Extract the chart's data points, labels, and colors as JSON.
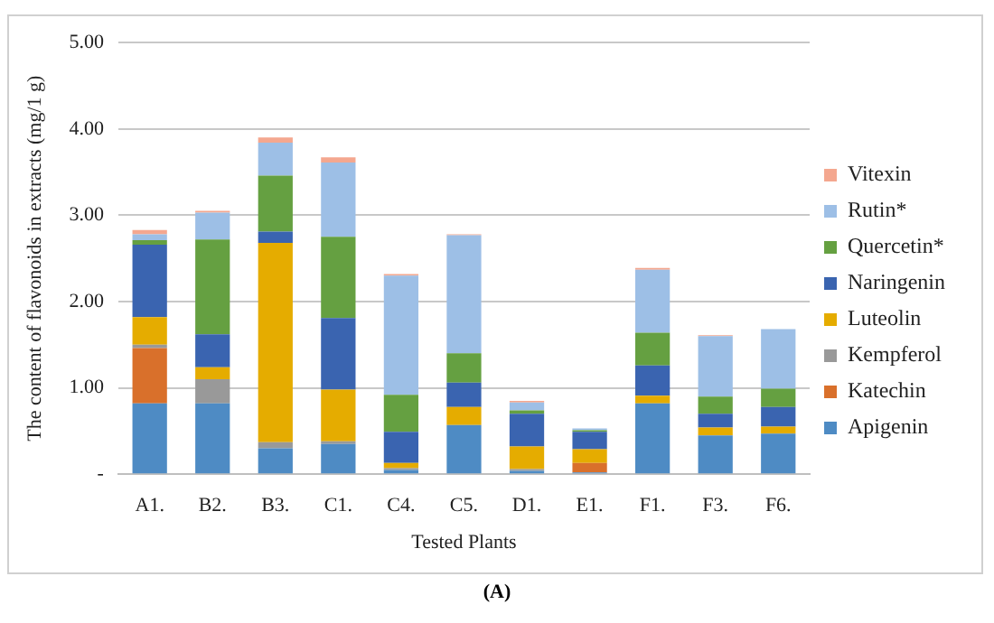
{
  "chart_data": {
    "type": "bar",
    "stacked": true,
    "xlabel": "Tested Plants",
    "ylabel": "The content of flavonoids in extracts (mg/1 g)",
    "annotations": [
      "(A)"
    ],
    "categories": [
      "A1.",
      "B2.",
      "B3.",
      "C1.",
      "C4.",
      "C5.",
      "D1.",
      "E1.",
      "F1.",
      "F3.",
      "F6."
    ],
    "series": [
      {
        "name": "Apigenin",
        "color": "#4e8bc4",
        "values": [
          0.82,
          0.82,
          0.3,
          0.35,
          0.05,
          0.57,
          0.04,
          0.02,
          0.82,
          0.45,
          0.47
        ]
      },
      {
        "name": "Katechin",
        "color": "#d9702b",
        "values": [
          0.64,
          0,
          0,
          0,
          0,
          0,
          0,
          0.11,
          0,
          0,
          0
        ]
      },
      {
        "name": "Kempferol",
        "color": "#999999",
        "values": [
          0.04,
          0.28,
          0.07,
          0.03,
          0.02,
          0,
          0.02,
          0,
          0,
          0,
          0
        ]
      },
      {
        "name": "Luteolin",
        "color": "#e5ac00",
        "values": [
          0.32,
          0.14,
          2.31,
          0.6,
          0.06,
          0.21,
          0.26,
          0.16,
          0.09,
          0.09,
          0.08
        ]
      },
      {
        "name": "Naringenin",
        "color": "#3a64b0",
        "values": [
          0.84,
          0.38,
          0.13,
          0.83,
          0.36,
          0.28,
          0.38,
          0.2,
          0.35,
          0.16,
          0.23
        ]
      },
      {
        "name": "Quercetin*",
        "color": "#65a041",
        "values": [
          0.05,
          1.1,
          0.65,
          0.94,
          0.43,
          0.34,
          0.04,
          0.02,
          0.38,
          0.2,
          0.21
        ]
      },
      {
        "name": "Rutin*",
        "color": "#9dbfe6",
        "values": [
          0.07,
          0.31,
          0.38,
          0.86,
          1.38,
          1.37,
          0.09,
          0.02,
          0.73,
          0.7,
          0.69
        ]
      },
      {
        "name": "Vitexin",
        "color": "#f4a78f",
        "values": [
          0.05,
          0.02,
          0.06,
          0.06,
          0.02,
          0.01,
          0.02,
          0,
          0.02,
          0.01,
          null
        ]
      }
    ],
    "ylim": [
      0,
      5
    ],
    "yticks": [
      {
        "value": 0,
        "label": "-"
      },
      {
        "value": 1,
        "label": "1.00"
      },
      {
        "value": 2,
        "label": "2.00"
      },
      {
        "value": 3,
        "label": "3.00"
      },
      {
        "value": 4,
        "label": "4.00"
      },
      {
        "value": 5,
        "label": "5.00"
      }
    ],
    "grid": "y",
    "legend": "right"
  }
}
